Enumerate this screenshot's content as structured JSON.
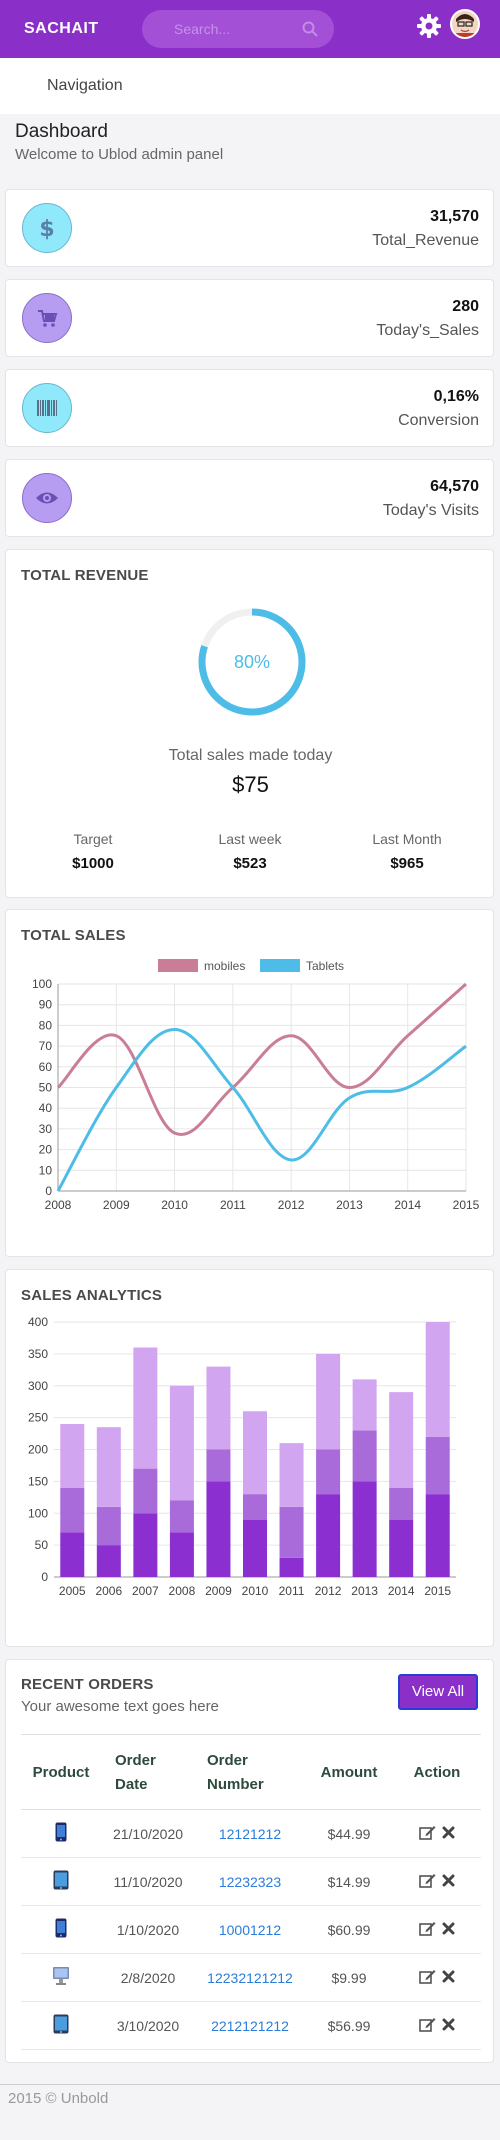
{
  "header": {
    "brand": "SACHAIT",
    "search_placeholder": "Search...",
    "gear_icon": "gear-icon",
    "search_icon": "search-icon"
  },
  "nav": {
    "label": "Navigation"
  },
  "page": {
    "title": "Dashboard",
    "subtitle": "Welcome to Ublod admin panel"
  },
  "stats": [
    {
      "value": "31,570",
      "label": "Total_Revenue",
      "icon": "dollar-icon",
      "color": "#8fe9fb"
    },
    {
      "value": "280",
      "label": "Today's_Sales",
      "icon": "cart-icon",
      "color": "#b69df2"
    },
    {
      "value": "0,16%",
      "label": "Conversion",
      "icon": "barcode-icon",
      "color": "#8fe9fb"
    },
    {
      "value": "64,570",
      "label": "Today's Visits",
      "icon": "eye-icon",
      "color": "#b69df2"
    }
  ],
  "revenue": {
    "title": "TOTAL REVENUE",
    "percent": 80,
    "percent_label": "80%",
    "caption": "Total sales made today",
    "amount": "$75",
    "columns": [
      {
        "label": "Target",
        "value": "$1000"
      },
      {
        "label": "Last week",
        "value": "$523"
      },
      {
        "label": "Last Month",
        "value": "$965"
      }
    ]
  },
  "total_sales": {
    "title": "TOTAL SALES"
  },
  "sales_analytics": {
    "title": "SALES ANALYTICS"
  },
  "chart_data": [
    {
      "type": "line",
      "x": [
        2008,
        2009,
        2010,
        2011,
        2012,
        2013,
        2014,
        2015
      ],
      "series": [
        {
          "name": "mobiles",
          "color": "#c97d97",
          "values": [
            50,
            75,
            28,
            50,
            75,
            50,
            75,
            100
          ]
        },
        {
          "name": "Tablets",
          "color": "#4dbde8",
          "values": [
            0,
            50,
            78,
            50,
            15,
            45,
            50,
            70
          ]
        }
      ],
      "ylim": [
        0,
        100
      ],
      "yticks": [
        0,
        10,
        20,
        30,
        40,
        50,
        60,
        70,
        80,
        90,
        100
      ],
      "grid": true,
      "legend": "top"
    },
    {
      "type": "bar",
      "stacked": true,
      "categories": [
        "2005",
        "2006",
        "2007",
        "2008",
        "2009",
        "2010",
        "2011",
        "2012",
        "2013",
        "2014",
        "2015"
      ],
      "series": [
        {
          "color": "#8b2fd1",
          "values": [
            70,
            50,
            100,
            70,
            150,
            90,
            30,
            130,
            150,
            90,
            130
          ]
        },
        {
          "color": "#a86bd9",
          "values": [
            70,
            60,
            70,
            50,
            50,
            40,
            80,
            70,
            80,
            50,
            90
          ]
        },
        {
          "color": "#d2a5f0",
          "values": [
            100,
            125,
            190,
            180,
            130,
            130,
            100,
            150,
            80,
            150,
            180
          ]
        }
      ],
      "ylim": [
        0,
        400
      ],
      "yticks": [
        0,
        50,
        100,
        150,
        200,
        250,
        300,
        350,
        400
      ],
      "grid": true
    }
  ],
  "orders": {
    "title": "RECENT ORDERS",
    "subtitle": "Your awesome text goes here",
    "view_all": "View All",
    "columns": [
      "Product",
      "Order Date",
      "Order Number",
      "Amount",
      "Action"
    ],
    "rows": [
      {
        "product_icon": "phone-icon",
        "date": "21/10/2020",
        "number": "12121212",
        "amount": "$44.99"
      },
      {
        "product_icon": "tablet-icon",
        "date": "11/10/2020",
        "number": "12232323",
        "amount": "$14.99"
      },
      {
        "product_icon": "phone-icon",
        "date": "1/10/2020",
        "number": "10001212",
        "amount": "$60.99"
      },
      {
        "product_icon": "desktop-icon",
        "date": "2/8/2020",
        "number": "12232121212",
        "amount": "$9.99"
      },
      {
        "product_icon": "tablet-icon",
        "date": "3/10/2020",
        "number": "2212121212",
        "amount": "$56.99"
      }
    ]
  },
  "footer": {
    "text": "2015 © Unbold"
  }
}
